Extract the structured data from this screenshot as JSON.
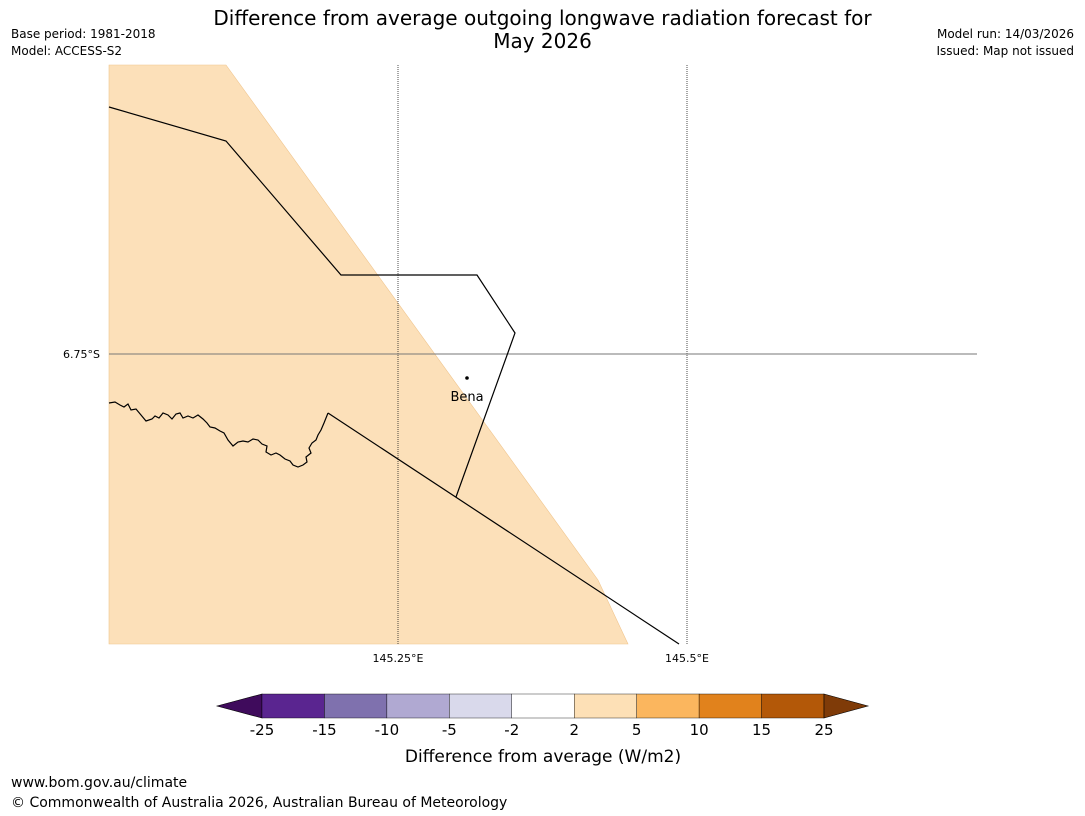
{
  "title": {
    "line1": "Difference from average outgoing longwave radiation forecast for",
    "line2": "May 2026"
  },
  "meta": {
    "base_period": "Base period: 1981-2018",
    "model": "Model: ACCESS-S2",
    "model_run": "Model run: 14/03/2026",
    "issued": "Issued: Map not issued"
  },
  "map": {
    "lat_labels": [
      "6.75°S"
    ],
    "lon_labels": [
      "145.25°E",
      "145.5°E"
    ],
    "place": "Bena",
    "colors": {
      "shaded_anomaly": "#fce0b9",
      "background": "#ffffff"
    }
  },
  "legend": {
    "title": "Difference from average (W/m2)",
    "ticks": [
      "-25",
      "-15",
      "-10",
      "-5",
      "-2",
      "2",
      "5",
      "10",
      "15",
      "25"
    ],
    "colors": [
      "#3f0b5c",
      "#5a2590",
      "#7f71ae",
      "#b0a9d2",
      "#d9d9eb",
      "#ffffff",
      "#fde0b6",
      "#fbb65e",
      "#e1821c",
      "#b35808",
      "#7f3b08"
    ]
  },
  "footer": {
    "url": "www.bom.gov.au/climate",
    "copyright": "© Commonwealth of Australia 2026, Australian Bureau of Meteorology"
  }
}
